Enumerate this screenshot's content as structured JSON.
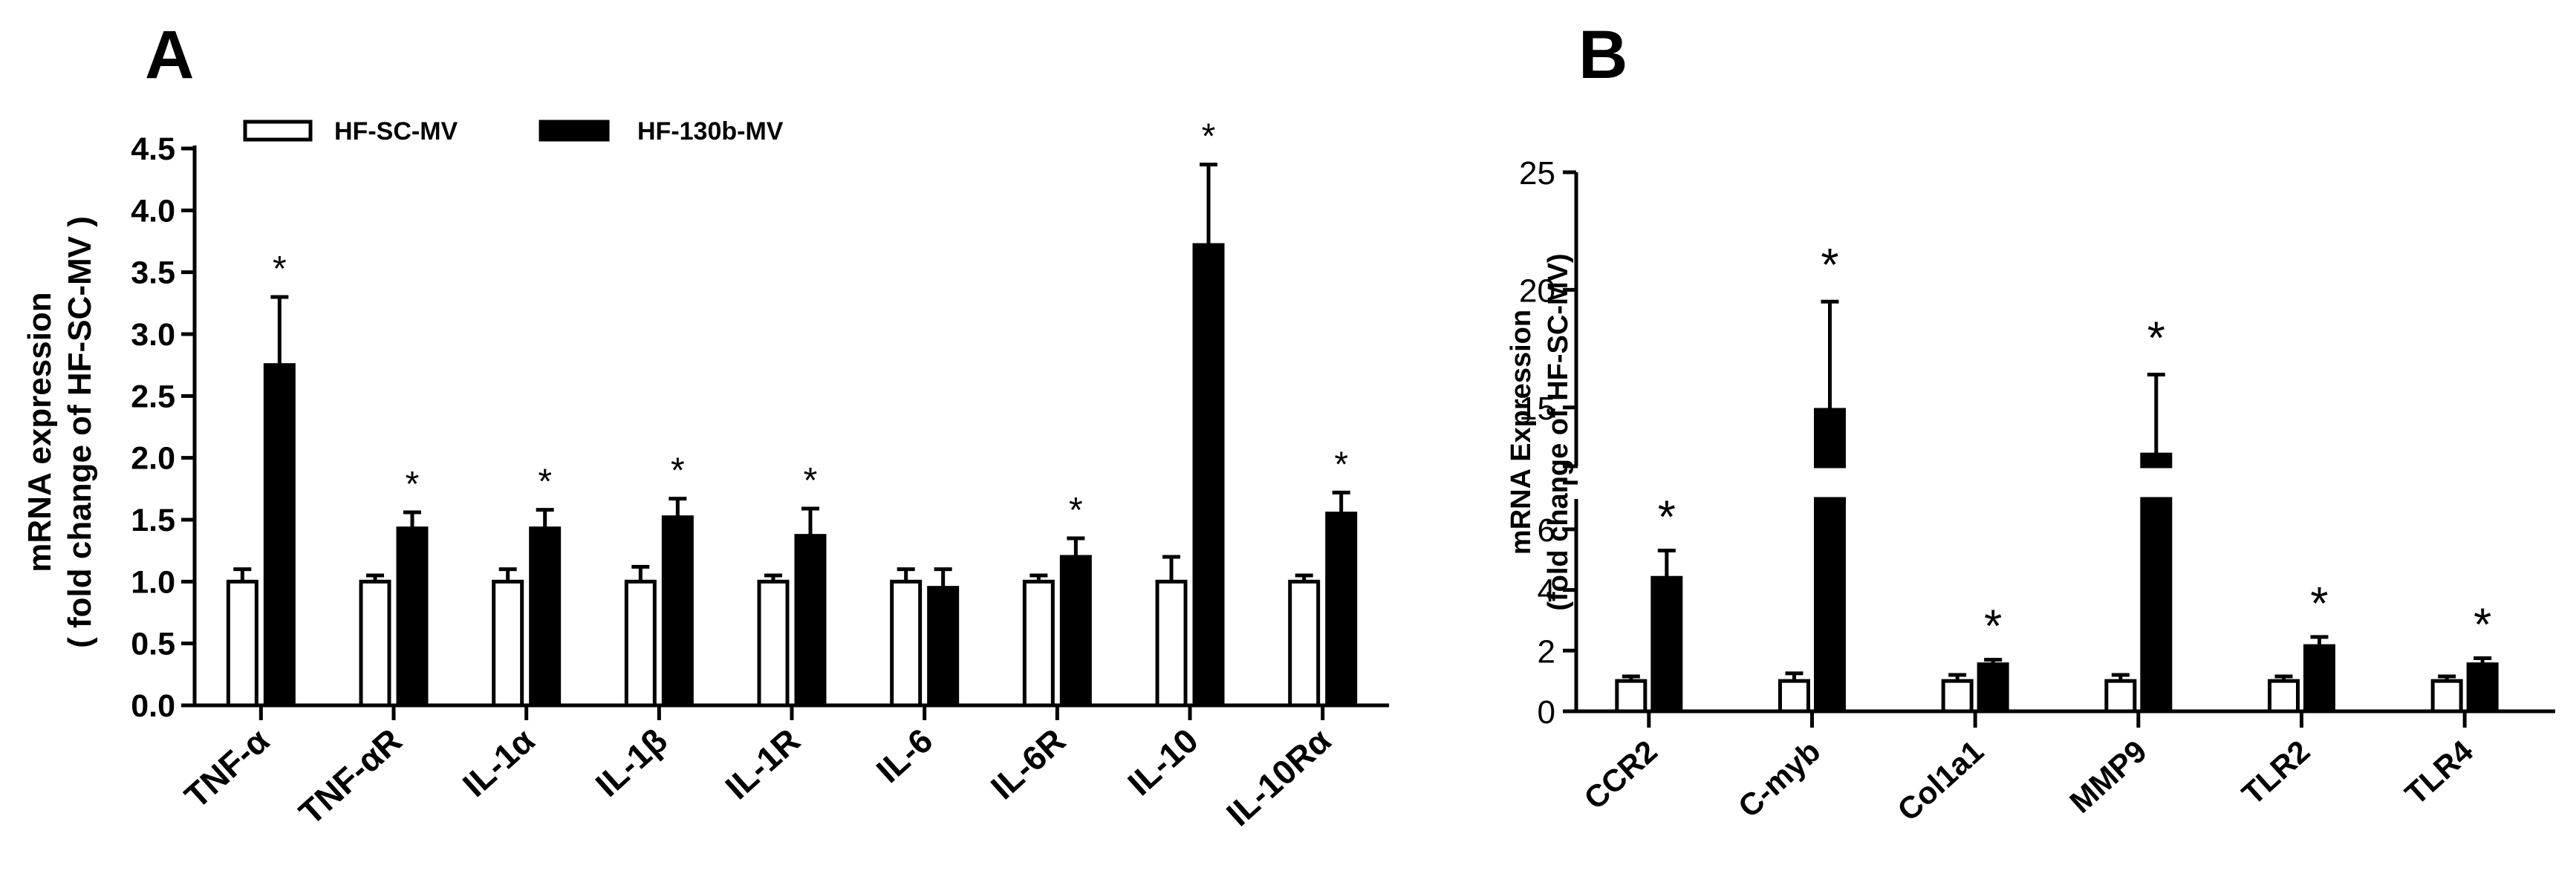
{
  "panels": [
    {
      "letter": "A",
      "ylabel_line1": "mRNA expression",
      "ylabel_line2": "( fold change of HF-SC-MV )",
      "legend": [
        "HF-SC-MV",
        "HF-130b-MV"
      ]
    },
    {
      "letter": "B",
      "ylabel_line1": "mRNA Expression",
      "ylabel_line2": "(fold change of HF-SC-MV)"
    }
  ],
  "chart_data": [
    {
      "type": "bar",
      "title": "",
      "ylabel": "mRNA expression ( fold change of HF-SC-MV )",
      "ylim": [
        0,
        4.5
      ],
      "yticks": [
        "0.0",
        "0.5",
        "1.0",
        "1.5",
        "2.0",
        "2.5",
        "3.0",
        "3.5",
        "4.0",
        "4.5"
      ],
      "categories": [
        "TNF-α",
        "TNF-αR",
        "IL-1α",
        "IL-1β",
        "IL-1R",
        "IL-6",
        "IL-6R",
        "IL-10",
        "IL-10Rα"
      ],
      "series": [
        {
          "name": "HF-SC-MV",
          "color": "#ffffff",
          "values": [
            1.0,
            1.0,
            1.0,
            1.0,
            1.0,
            1.0,
            1.0,
            1.0,
            1.0
          ],
          "errors": [
            0.1,
            0.05,
            0.1,
            0.12,
            0.05,
            0.1,
            0.05,
            0.2,
            0.05
          ]
        },
        {
          "name": "HF-130b-MV",
          "color": "#000000",
          "values": [
            2.75,
            1.43,
            1.43,
            1.52,
            1.37,
            0.95,
            1.2,
            3.72,
            1.55
          ],
          "errors": [
            0.55,
            0.13,
            0.15,
            0.15,
            0.22,
            0.15,
            0.15,
            0.65,
            0.17
          ]
        }
      ],
      "significance": [
        "*",
        "*",
        "*",
        "*",
        "*",
        "",
        "*",
        "*",
        "*"
      ],
      "legend": "top-left",
      "grid": false
    },
    {
      "type": "bar",
      "title": "",
      "ylabel": "mRNA Expression (fold change of HF-SC-MV)",
      "ylim": [
        0,
        25
      ],
      "axis_break": [
        7,
        12.5
      ],
      "yticks": [
        "0",
        "2",
        "4",
        "6",
        "15",
        "20",
        "25"
      ],
      "categories": [
        "CCR2",
        "C-myb",
        "Col1a1",
        "MMP9",
        "TLR2",
        "TLR4"
      ],
      "series": [
        {
          "name": "",
          "color": "#ffffff",
          "values": [
            1.0,
            1.0,
            1.0,
            1.0,
            1.0,
            1.0
          ],
          "errors": [
            0.15,
            0.25,
            0.2,
            0.2,
            0.15,
            0.15
          ]
        },
        {
          "name": "",
          "color": "#000000",
          "values": [
            4.4,
            14.9,
            1.55,
            13.0,
            2.15,
            1.55
          ],
          "errors": [
            0.9,
            4.6,
            0.15,
            3.4,
            0.3,
            0.2
          ]
        }
      ],
      "significance": [
        "*",
        "*",
        "*",
        "*",
        "*",
        "*"
      ],
      "grid": false
    }
  ]
}
